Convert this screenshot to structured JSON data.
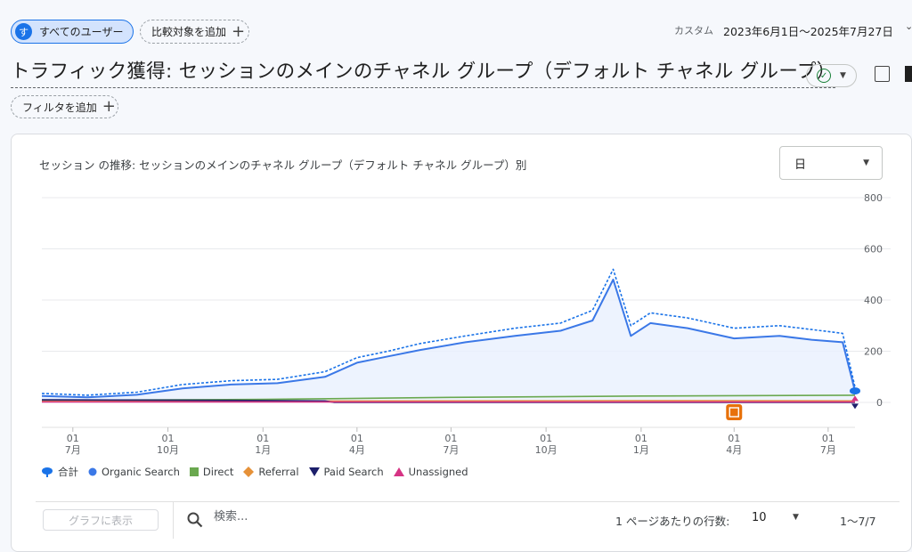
{
  "header": {
    "user_segment": "すべてのユーザー",
    "user_avatar_letter": "す",
    "compare_label": "比較対象を追加",
    "custom_label": "カスタム",
    "date_range": "2023年6月1日～2025年7月27日"
  },
  "page": {
    "title": "トラフィック獲得: セッションのメインのチャネル グループ（デフォルト チャネル グループ）",
    "filter_label": "フィルタを追加"
  },
  "chart_card": {
    "title": "セッション の推移: セッションのメインのチャネル グループ（デフォルト チャネル グループ）別",
    "granularity": "日"
  },
  "legend": [
    {
      "label": "合計",
      "icon": "total-pin-icon",
      "color": "#1a73e8"
    },
    {
      "label": "Organic Search",
      "icon": "circle-icon",
      "color": "#3b78e7"
    },
    {
      "label": "Direct",
      "icon": "square-icon",
      "color": "#6aa84f"
    },
    {
      "label": "Referral",
      "icon": "diamond-icon",
      "color": "#e69138"
    },
    {
      "label": "Paid Search",
      "icon": "triangle-down-icon",
      "color": "#1c1f6b"
    },
    {
      "label": "Unassigned",
      "icon": "triangle-up-icon",
      "color": "#d63384"
    }
  ],
  "table_toolbar": {
    "show_graph": "グラフに表示",
    "search_placeholder": "検索...",
    "rows_label": "1 ページあたりの行数:",
    "rows_value": "10",
    "pager": "1～7/7"
  },
  "chart_data": {
    "type": "line",
    "title": "セッション の推移: セッションのメインのチャネル グループ（デフォルト チャネル グループ）別",
    "x_ticks": [
      {
        "day": "01",
        "month": "7月",
        "date": "2023-07-01"
      },
      {
        "day": "01",
        "month": "10月",
        "date": "2023-10-01"
      },
      {
        "day": "01",
        "month": "1月",
        "date": "2024-01-01"
      },
      {
        "day": "01",
        "month": "4月",
        "date": "2024-04-01"
      },
      {
        "day": "01",
        "month": "7月",
        "date": "2024-07-01"
      },
      {
        "day": "01",
        "month": "10月",
        "date": "2024-10-01"
      },
      {
        "day": "01",
        "month": "1月",
        "date": "2025-01-01"
      },
      {
        "day": "01",
        "month": "4月",
        "date": "2025-04-01"
      },
      {
        "day": "01",
        "month": "7月",
        "date": "2025-07-01"
      }
    ],
    "y_ticks": [
      "800",
      "600",
      "400",
      "200",
      "0"
    ],
    "ylim": [
      0,
      800
    ],
    "xlim": [
      "2023-06-01",
      "2025-07-27"
    ],
    "grid": true,
    "legend_position": "bottom-left",
    "series": [
      {
        "name": "合計",
        "color": "#1a73e8",
        "dashed": true,
        "x": [
          "2023-06-01",
          "2023-07-15",
          "2023-09-01",
          "2023-10-15",
          "2023-12-01",
          "2024-01-15",
          "2024-03-01",
          "2024-04-01",
          "2024-05-01",
          "2024-06-01",
          "2024-07-15",
          "2024-09-01",
          "2024-10-15",
          "2024-11-15",
          "2024-12-05",
          "2024-12-22",
          "2025-01-10",
          "2025-02-15",
          "2025-04-01",
          "2025-05-15",
          "2025-06-15",
          "2025-07-15",
          "2025-07-27"
        ],
        "y": [
          35,
          28,
          40,
          70,
          85,
          90,
          120,
          175,
          200,
          230,
          260,
          290,
          310,
          360,
          520,
          300,
          350,
          330,
          290,
          300,
          285,
          270,
          60
        ]
      },
      {
        "name": "Organic Search",
        "color": "#3b78e7",
        "dashed": false,
        "x": [
          "2023-06-01",
          "2023-07-15",
          "2023-09-01",
          "2023-10-15",
          "2023-12-01",
          "2024-01-15",
          "2024-03-01",
          "2024-04-01",
          "2024-05-01",
          "2024-06-01",
          "2024-07-15",
          "2024-09-01",
          "2024-10-15",
          "2024-11-15",
          "2024-12-05",
          "2024-12-22",
          "2025-01-10",
          "2025-02-15",
          "2025-04-01",
          "2025-05-15",
          "2025-06-15",
          "2025-07-15",
          "2025-07-27"
        ],
        "y": [
          25,
          20,
          30,
          55,
          70,
          75,
          100,
          155,
          180,
          205,
          235,
          260,
          280,
          320,
          480,
          260,
          310,
          290,
          250,
          260,
          245,
          235,
          45
        ]
      },
      {
        "name": "Direct",
        "color": "#6aa84f",
        "dashed": false,
        "x": [
          "2023-06-01",
          "2024-01-01",
          "2024-07-01",
          "2025-01-01",
          "2025-07-27"
        ],
        "y": [
          8,
          12,
          20,
          25,
          28
        ]
      },
      {
        "name": "Referral",
        "color": "#e69138",
        "dashed": false,
        "x": [
          "2023-06-01",
          "2024-01-01",
          "2024-07-01",
          "2025-01-01",
          "2025-07-27"
        ],
        "y": [
          4,
          5,
          6,
          7,
          6
        ]
      },
      {
        "name": "Paid Search",
        "color": "#1c1f6b",
        "dashed": false,
        "x": [
          "2023-06-01",
          "2023-12-01",
          "2024-03-01",
          "2024-03-10",
          "2025-07-27"
        ],
        "y": [
          10,
          8,
          6,
          0,
          0
        ]
      },
      {
        "name": "Unassigned",
        "color": "#d63384",
        "dashed": false,
        "x": [
          "2023-06-01",
          "2025-07-27"
        ],
        "y": [
          2,
          2
        ]
      }
    ]
  }
}
